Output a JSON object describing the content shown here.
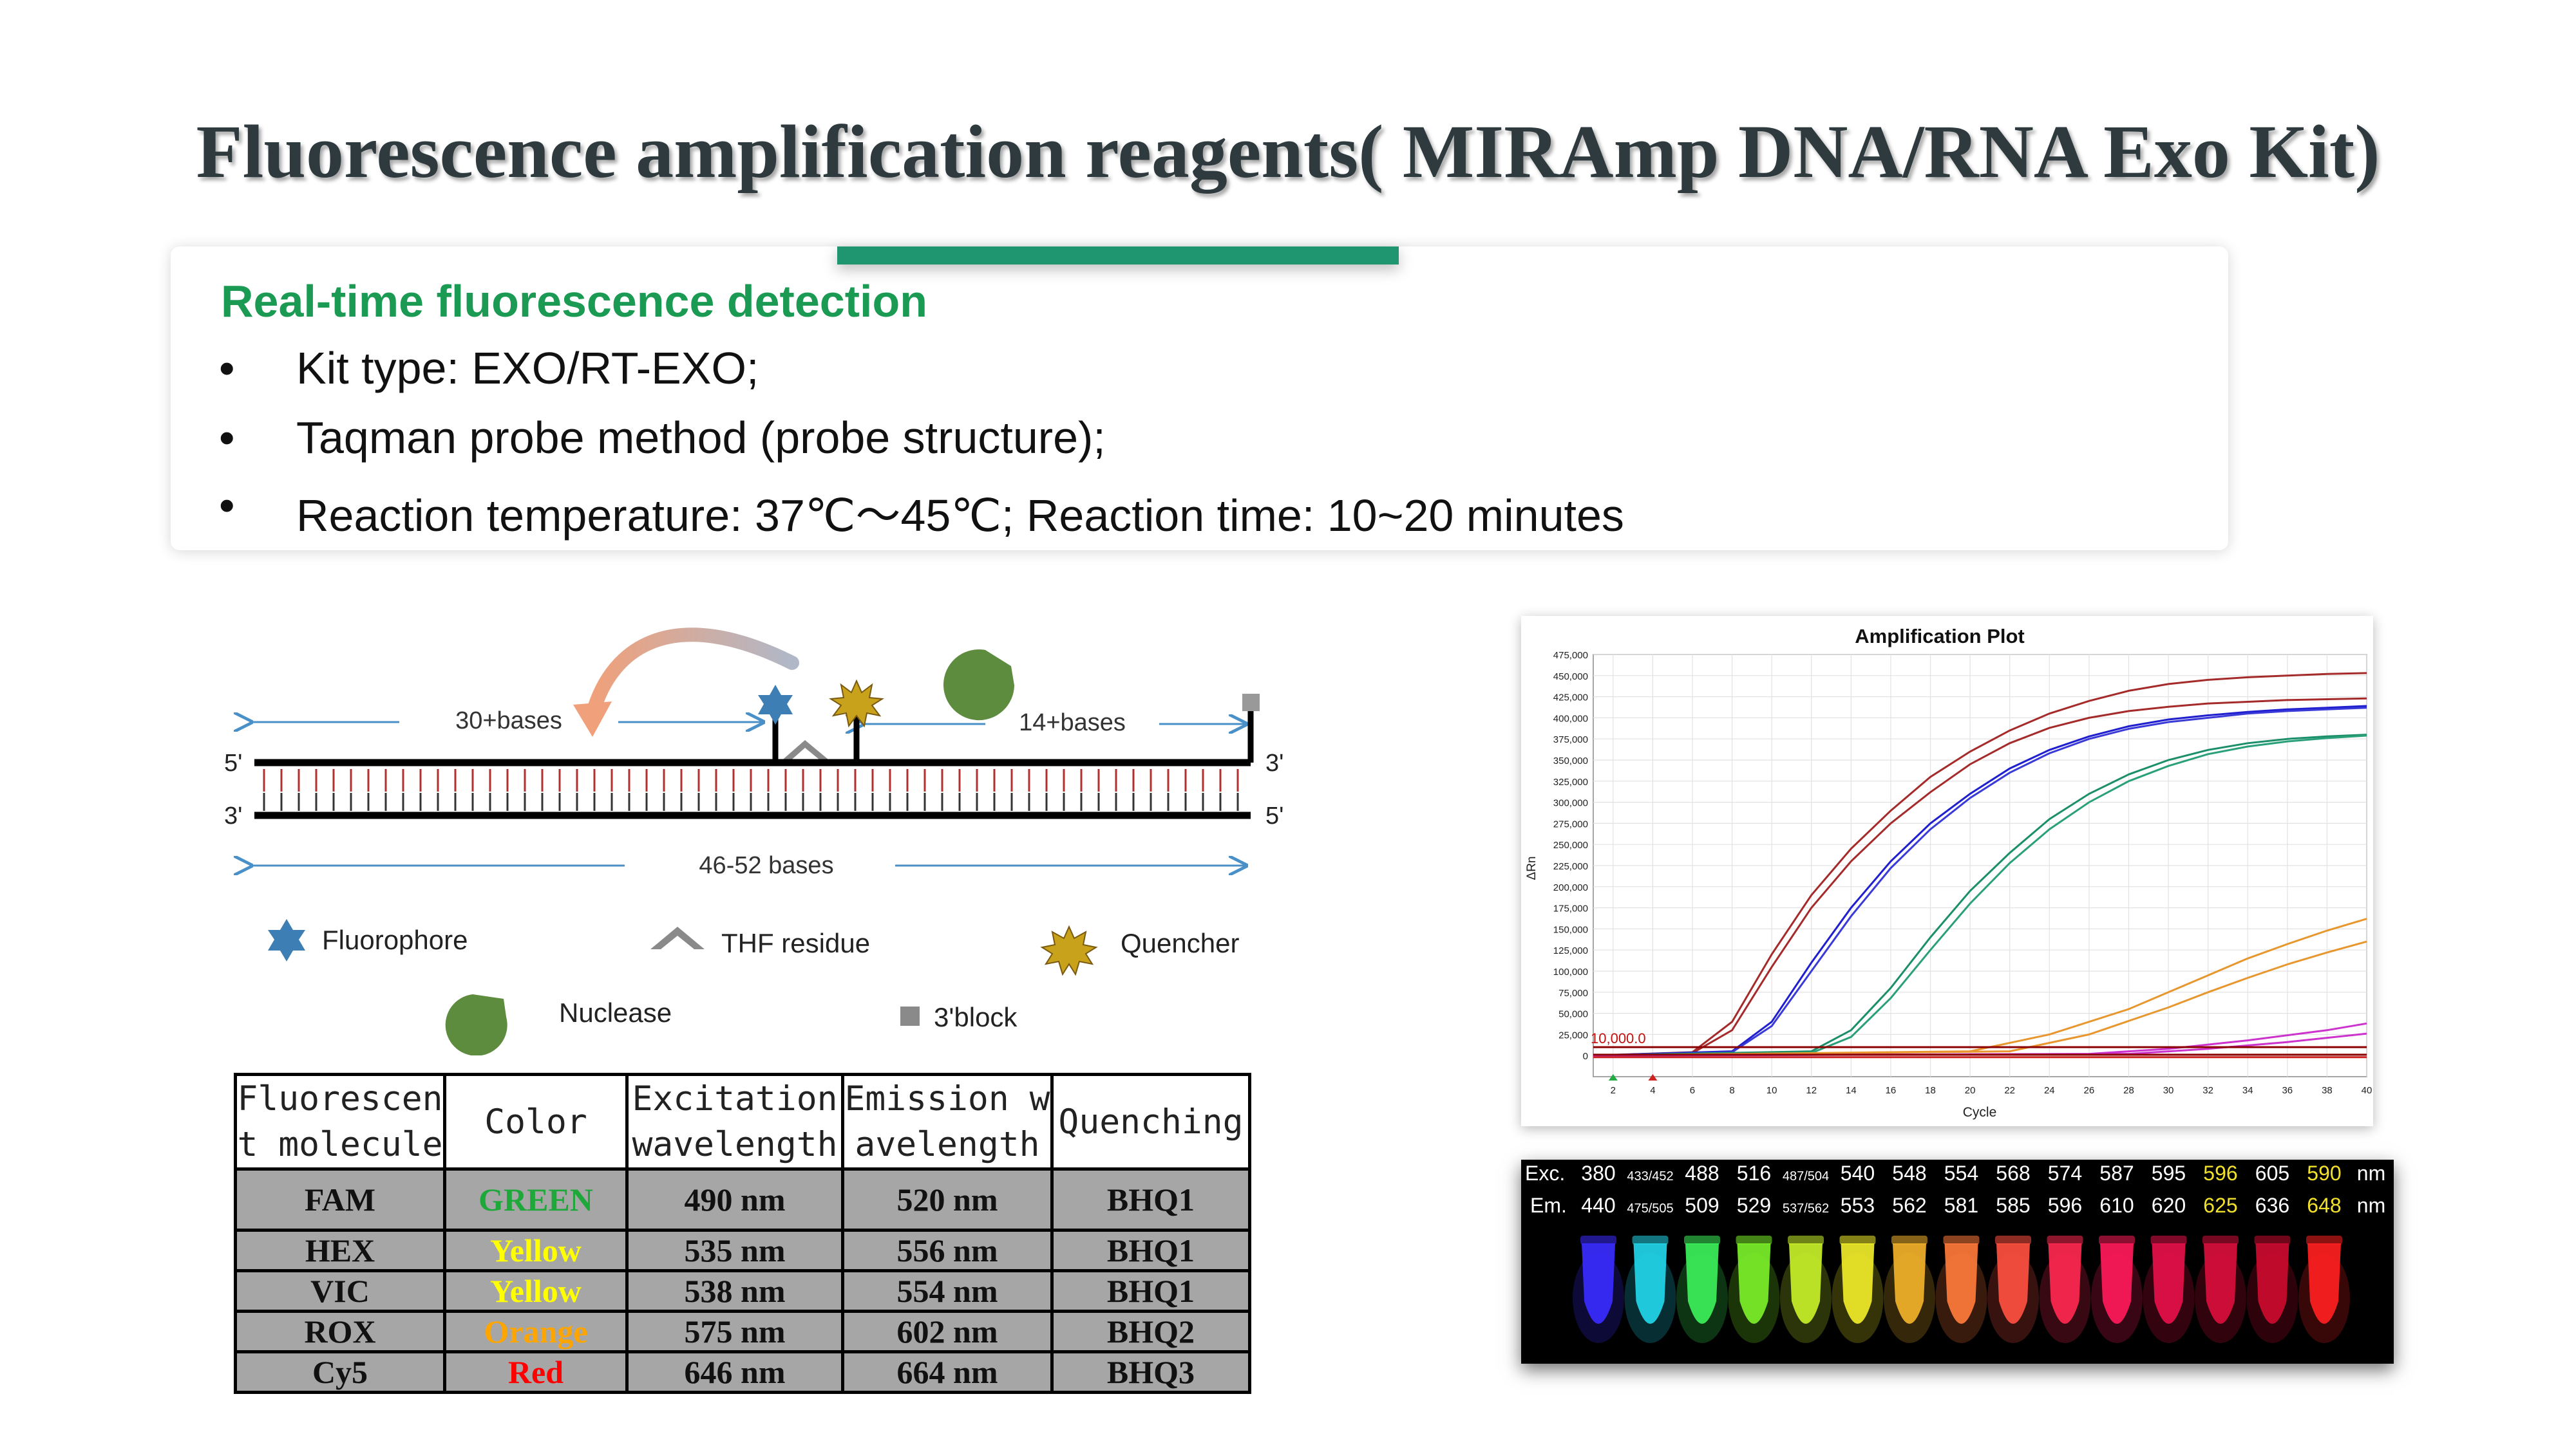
{
  "slide": {
    "title": "Fluorescence amplification reagents( MIRAmp DNA/RNA Exo Kit)",
    "accent_color": "#1f9670"
  },
  "detection": {
    "heading": "Real-time fluorescence detection",
    "bullets": [
      "Kit type: EXO/RT-EXO;",
      "Taqman probe method (probe structure);",
      "Reaction temperature: 37℃～45℃; Reaction time: 10~20 minutes"
    ]
  },
  "probe_diagram": {
    "label_30": "30+bases",
    "label_14": "14+bases",
    "label_total": "46-52 bases",
    "end_5_top": "5'",
    "end_3_top": "3'",
    "end_3_bottom": "3'",
    "end_5_bottom": "5'",
    "legend": {
      "fluorophore": "Fluorophore",
      "thf": "THF residue",
      "quencher": "Quencher",
      "nuclease": "Nuclease",
      "block": "3'block"
    }
  },
  "fluor_table": {
    "headers": [
      "Fluorescen t molecule",
      "Color",
      "Excitation wavelength",
      "Emission w avelength",
      "Quenching"
    ],
    "header_lines": [
      [
        "Fluorescen",
        "t molecule"
      ],
      [
        "Color",
        ""
      ],
      [
        "Excitation",
        "wavelength"
      ],
      [
        "Emission w",
        "avelength"
      ],
      [
        "Quenching",
        ""
      ]
    ],
    "rows": [
      {
        "molecule": "FAM",
        "color": "GREEN",
        "color_hex": "#1fa83a",
        "excitation": "490 nm",
        "emission": "520 nm",
        "quencher": "BHQ1"
      },
      {
        "molecule": "HEX",
        "color": "Yellow",
        "color_hex": "#ffff00",
        "excitation": "535 nm",
        "emission": "556 nm",
        "quencher": "BHQ1"
      },
      {
        "molecule": "VIC",
        "color": "Yellow",
        "color_hex": "#ffff00",
        "excitation": "538 nm",
        "emission": "554 nm",
        "quencher": "BHQ1"
      },
      {
        "molecule": "ROX",
        "color": "Orange",
        "color_hex": "#ffa500",
        "excitation": "575 nm",
        "emission": "602 nm",
        "quencher": "BHQ2"
      },
      {
        "molecule": "Cy5",
        "color": "Red",
        "color_hex": "#ff0000",
        "excitation": "646 nm",
        "emission": "664 nm",
        "quencher": "BHQ3"
      }
    ]
  },
  "chart_data": {
    "type": "line",
    "title": "Amplification Plot",
    "xlabel": "Cycle",
    "ylabel": "ΔRn",
    "xlim": [
      1,
      40
    ],
    "ylim": [
      -25000,
      475000
    ],
    "x_ticks": [
      2,
      4,
      6,
      8,
      10,
      12,
      14,
      16,
      18,
      20,
      22,
      24,
      26,
      28,
      30,
      32,
      34,
      36,
      38,
      40
    ],
    "y_ticks": [
      0,
      25000,
      50000,
      75000,
      100000,
      125000,
      150000,
      175000,
      200000,
      225000,
      250000,
      275000,
      300000,
      325000,
      350000,
      375000,
      400000,
      425000,
      450000,
      475000
    ],
    "y_tick_labels": [
      "0",
      "25,000",
      "50,000",
      "75,000",
      "100,000",
      "125,000",
      "150,000",
      "175,000",
      "200,000",
      "225,000",
      "250,000",
      "275,000",
      "300,000",
      "325,000",
      "350,000",
      "375,000",
      "400,000",
      "425,000",
      "450,000",
      "475,000"
    ],
    "threshold": 10000,
    "threshold_label": "10,000.0",
    "grid": true,
    "series": [
      {
        "color": "#a52a2a",
        "x": [
          1,
          6,
          8,
          10,
          12,
          14,
          16,
          18,
          20,
          22,
          24,
          26,
          28,
          30,
          32,
          34,
          36,
          38,
          40
        ],
        "y": [
          0,
          4000,
          40000,
          120000,
          190000,
          245000,
          290000,
          330000,
          360000,
          385000,
          405000,
          420000,
          432000,
          440000,
          445000,
          448000,
          450000,
          452000,
          453000
        ]
      },
      {
        "color": "#a52a2a",
        "x": [
          1,
          6,
          8,
          10,
          12,
          14,
          16,
          18,
          20,
          22,
          24,
          26,
          28,
          30,
          32,
          34,
          36,
          38,
          40
        ],
        "y": [
          0,
          3000,
          30000,
          105000,
          175000,
          230000,
          275000,
          312000,
          345000,
          370000,
          388000,
          400000,
          408000,
          413000,
          417000,
          419000,
          421000,
          422000,
          423000
        ]
      },
      {
        "color": "#1f1fd0",
        "x": [
          1,
          8,
          10,
          12,
          14,
          16,
          18,
          20,
          22,
          24,
          26,
          28,
          30,
          32,
          34,
          36,
          38,
          40
        ],
        "y": [
          0,
          5000,
          40000,
          110000,
          175000,
          230000,
          275000,
          310000,
          340000,
          362000,
          378000,
          390000,
          398000,
          403000,
          407000,
          410000,
          412000,
          414000
        ]
      },
      {
        "color": "#3a3ad8",
        "x": [
          1,
          8,
          10,
          12,
          14,
          16,
          18,
          20,
          22,
          24,
          26,
          28,
          30,
          32,
          34,
          36,
          38,
          40
        ],
        "y": [
          0,
          4000,
          35000,
          100000,
          165000,
          222000,
          268000,
          305000,
          335000,
          358000,
          375000,
          387000,
          395000,
          400000,
          405000,
          408000,
          410000,
          412000
        ]
      },
      {
        "color": "#1a8f6a",
        "x": [
          1,
          12,
          14,
          16,
          18,
          20,
          22,
          24,
          26,
          28,
          30,
          32,
          34,
          36,
          38,
          40
        ],
        "y": [
          0,
          5000,
          30000,
          80000,
          140000,
          195000,
          240000,
          280000,
          310000,
          333000,
          350000,
          362000,
          370000,
          375000,
          378000,
          380000
        ]
      },
      {
        "color": "#2aa07a",
        "x": [
          1,
          12,
          14,
          16,
          18,
          20,
          22,
          24,
          26,
          28,
          30,
          32,
          34,
          36,
          38,
          40
        ],
        "y": [
          0,
          3000,
          22000,
          68000,
          125000,
          180000,
          228000,
          268000,
          300000,
          325000,
          343000,
          357000,
          366000,
          372000,
          376000,
          379000
        ]
      },
      {
        "color": "#e8962e",
        "x": [
          1,
          20,
          24,
          28,
          30,
          32,
          34,
          36,
          38,
          40
        ],
        "y": [
          0,
          5000,
          25000,
          55000,
          75000,
          95000,
          115000,
          132000,
          148000,
          162000
        ]
      },
      {
        "color": "#e8962e",
        "x": [
          1,
          22,
          26,
          30,
          32,
          34,
          36,
          38,
          40
        ],
        "y": [
          0,
          5000,
          25000,
          57000,
          75000,
          92000,
          108000,
          122000,
          135000
        ]
      },
      {
        "color": "#cc33cc",
        "x": [
          1,
          26,
          30,
          34,
          38,
          40
        ],
        "y": [
          0,
          2000,
          8000,
          18000,
          30000,
          38000
        ]
      },
      {
        "color": "#cc33cc",
        "x": [
          1,
          28,
          32,
          36,
          40
        ],
        "y": [
          0,
          2000,
          8000,
          16000,
          26000
        ]
      },
      {
        "color": "#8b0000",
        "x": [
          1,
          40
        ],
        "y": [
          1000,
          1000
        ]
      },
      {
        "color": "#cc2222",
        "x": [
          1,
          40
        ],
        "y": [
          -2000,
          -2000
        ]
      }
    ]
  },
  "tube_photo": {
    "exc_prefix": "Exc.",
    "em_prefix": "Em.",
    "unit": "nm",
    "exc": [
      "380",
      "433/452",
      "488",
      "516",
      "487/504",
      "540",
      "548",
      "554",
      "568",
      "574",
      "587",
      "595",
      "596",
      "605",
      "590"
    ],
    "em": [
      "440",
      "475/505",
      "509",
      "529",
      "537/562",
      "553",
      "562",
      "581",
      "585",
      "596",
      "610",
      "620",
      "625",
      "636",
      "648"
    ],
    "highlight": [
      false,
      false,
      false,
      false,
      false,
      false,
      false,
      false,
      false,
      false,
      false,
      false,
      true,
      false,
      true
    ],
    "highlight_color": "#f2e12b",
    "tube_colors": [
      "#3a2cff",
      "#22d6e8",
      "#3cf05a",
      "#7cf02a",
      "#c8f02a",
      "#f0ec2a",
      "#f2b22a",
      "#ff7a3a",
      "#ff5040",
      "#ff2850",
      "#ff1a5a",
      "#e6104a",
      "#d90e3c",
      "#cc0b30",
      "#ff2020"
    ]
  }
}
